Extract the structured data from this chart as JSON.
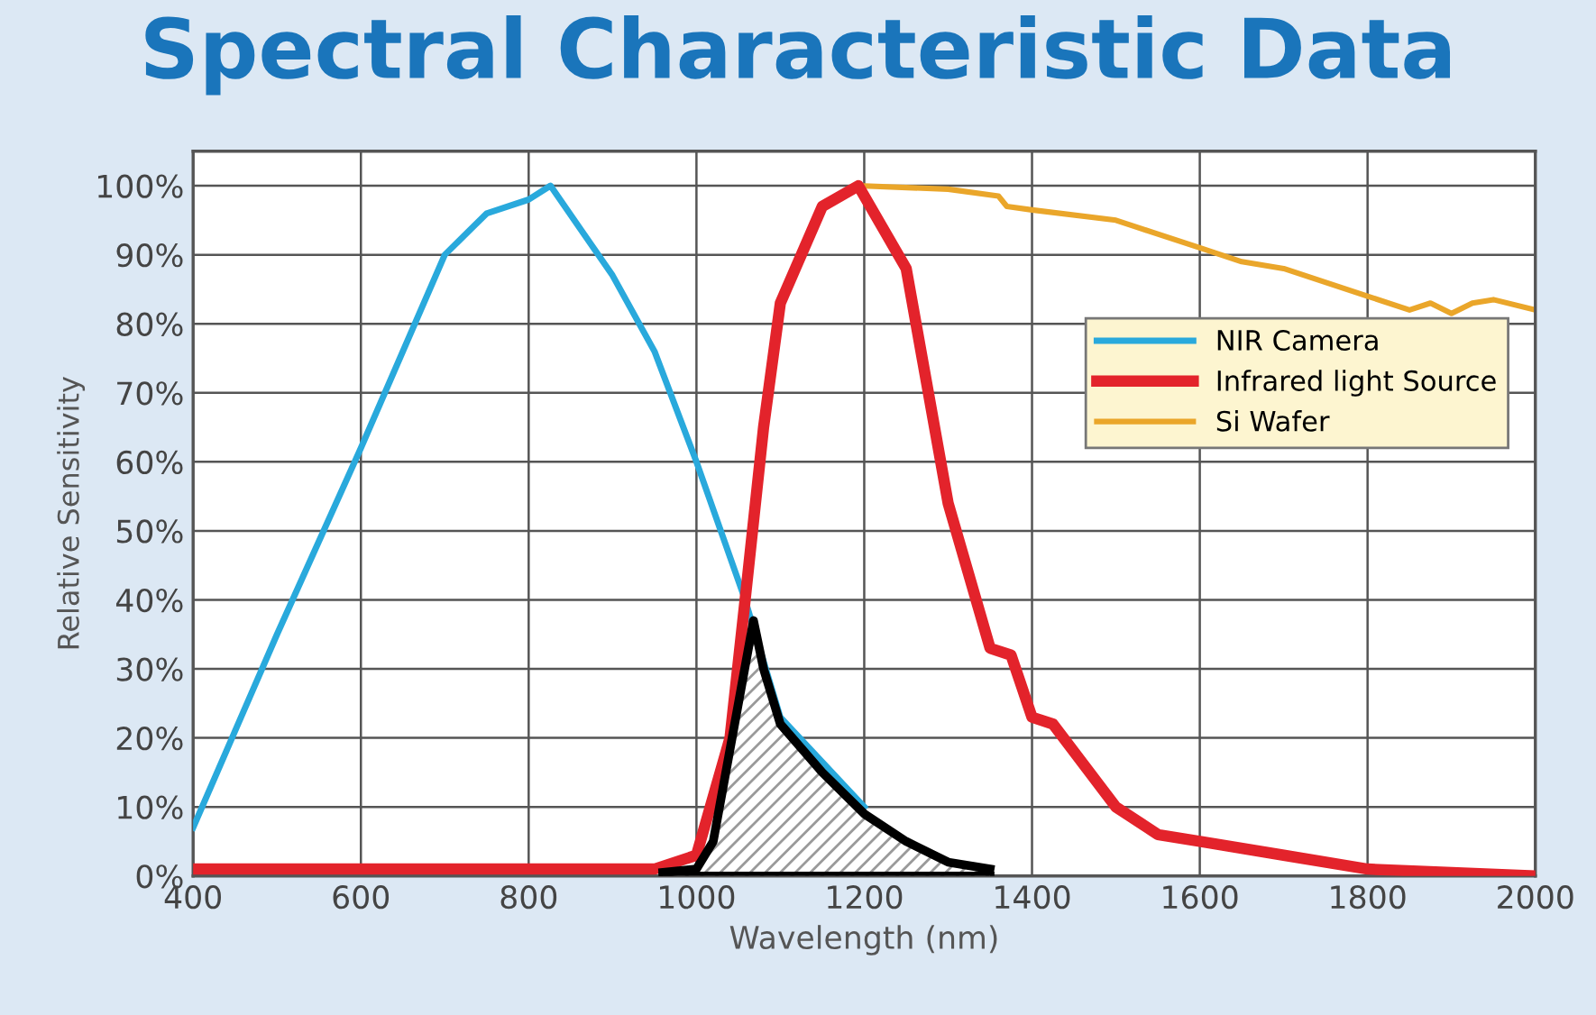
{
  "chart_data": {
    "type": "line",
    "title": "Spectral Characteristic Data",
    "xlabel": "Wavelength (nm)",
    "ylabel": "Relative Sensitivity",
    "xlim": [
      400,
      2000
    ],
    "ylim": [
      0,
      105
    ],
    "xticks": [
      400,
      600,
      800,
      1000,
      1200,
      1400,
      1600,
      1800,
      2000
    ],
    "yticks": [
      {
        "value": 0,
        "label": "0%"
      },
      {
        "value": 10,
        "label": "10%"
      },
      {
        "value": 20,
        "label": "20%"
      },
      {
        "value": 30,
        "label": "30%"
      },
      {
        "value": 40,
        "label": "40%"
      },
      {
        "value": 50,
        "label": "50%"
      },
      {
        "value": 60,
        "label": "60%"
      },
      {
        "value": 70,
        "label": "70%"
      },
      {
        "value": 80,
        "label": "80%"
      },
      {
        "value": 90,
        "label": "90%"
      },
      {
        "value": 100,
        "label": "100%"
      }
    ],
    "grid": true,
    "legend": "right",
    "series": [
      {
        "name": "NIR Camera",
        "color": "#29a9dc",
        "x": [
          400,
          450,
          500,
          600,
          700,
          750,
          800,
          826,
          900,
          950,
          1000,
          1058,
          1100,
          1200
        ],
        "values": [
          7,
          21,
          35,
          62,
          90,
          96,
          98,
          100,
          87,
          76,
          60,
          40,
          23,
          10
        ]
      },
      {
        "name": "Infrared light Source",
        "color": "#e3232b",
        "x": [
          400,
          950,
          1000,
          1040,
          1058,
          1080,
          1100,
          1150,
          1193,
          1250,
          1300,
          1350,
          1375,
          1400,
          1425,
          1500,
          1550,
          1600,
          1700,
          1800,
          2000
        ],
        "values": [
          1,
          1,
          3,
          20,
          40,
          65,
          83,
          97,
          100,
          88,
          54,
          33,
          32,
          23,
          22,
          10,
          6,
          5,
          3,
          1,
          0
        ]
      },
      {
        "name": "Si Wafer",
        "color": "#eaa62a",
        "x": [
          1150,
          1193,
          1300,
          1360,
          1370,
          1400,
          1500,
          1600,
          1650,
          1700,
          1800,
          1850,
          1875,
          1900,
          1925,
          1950,
          2000
        ],
        "values": [
          97,
          100,
          99.5,
          98.5,
          97,
          96.5,
          95,
          91,
          89,
          88,
          84,
          82,
          83,
          81.5,
          83,
          83.5,
          82
        ]
      },
      {
        "type": "area",
        "color": "#000000",
        "x": [
          960,
          1000,
          1020,
          1068,
          1080,
          1100,
          1150,
          1200,
          1250,
          1300,
          1350
        ],
        "values": [
          0.5,
          1,
          5,
          37,
          30,
          22,
          15,
          9,
          5,
          2,
          1
        ]
      }
    ]
  }
}
